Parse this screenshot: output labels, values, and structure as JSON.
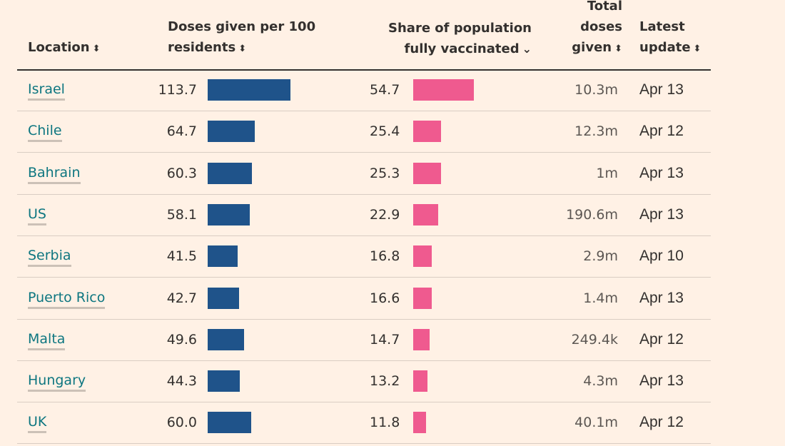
{
  "headers": {
    "location": {
      "lines": [
        "Location"
      ],
      "sort": "⬍"
    },
    "doses": {
      "lines": [
        "Doses given per 100",
        "residents"
      ],
      "sort": "⬍"
    },
    "share": {
      "lines": [
        "Share of population",
        "fully vaccinated"
      ],
      "sort": "⌄"
    },
    "total": {
      "lines": [
        "Total",
        "doses",
        "given"
      ],
      "sort": "⬍"
    },
    "update": {
      "lines": [
        "Latest",
        "update"
      ],
      "sort": "⬍"
    }
  },
  "colors": {
    "doses_bar": "#1f538a",
    "share_bar": "#ef5a8f",
    "link": "#0d7680",
    "background": "#fff1e5"
  },
  "chart_data": {
    "type": "table",
    "columns": [
      "Location",
      "Doses given per 100 residents",
      "Share of population fully vaccinated",
      "Total doses given",
      "Latest update"
    ],
    "sorted_by": "Share of population fully vaccinated",
    "sort_direction": "descending",
    "rows": [
      {
        "location": "Israel",
        "doses": "113.7",
        "share": "54.7",
        "total": "10.3m",
        "update": "Apr 13"
      },
      {
        "location": "Chile",
        "doses": "64.7",
        "share": "25.4",
        "total": "12.3m",
        "update": "Apr 12"
      },
      {
        "location": "Bahrain",
        "doses": "60.3",
        "share": "25.3",
        "total": "1m",
        "update": "Apr 13"
      },
      {
        "location": "US",
        "doses": "58.1",
        "share": "22.9",
        "total": "190.6m",
        "update": "Apr 13"
      },
      {
        "location": "Serbia",
        "doses": "41.5",
        "share": "16.8",
        "total": "2.9m",
        "update": "Apr 10"
      },
      {
        "location": "Puerto Rico",
        "doses": "42.7",
        "share": "16.6",
        "total": "1.4m",
        "update": "Apr 13"
      },
      {
        "location": "Malta",
        "doses": "49.6",
        "share": "14.7",
        "total": "249.4k",
        "update": "Apr 12"
      },
      {
        "location": "Hungary",
        "doses": "44.3",
        "share": "13.2",
        "total": "4.3m",
        "update": "Apr 13"
      },
      {
        "location": "UK",
        "doses": "60.0",
        "share": "11.8",
        "total": "40.1m",
        "update": "Apr 12"
      }
    ]
  }
}
